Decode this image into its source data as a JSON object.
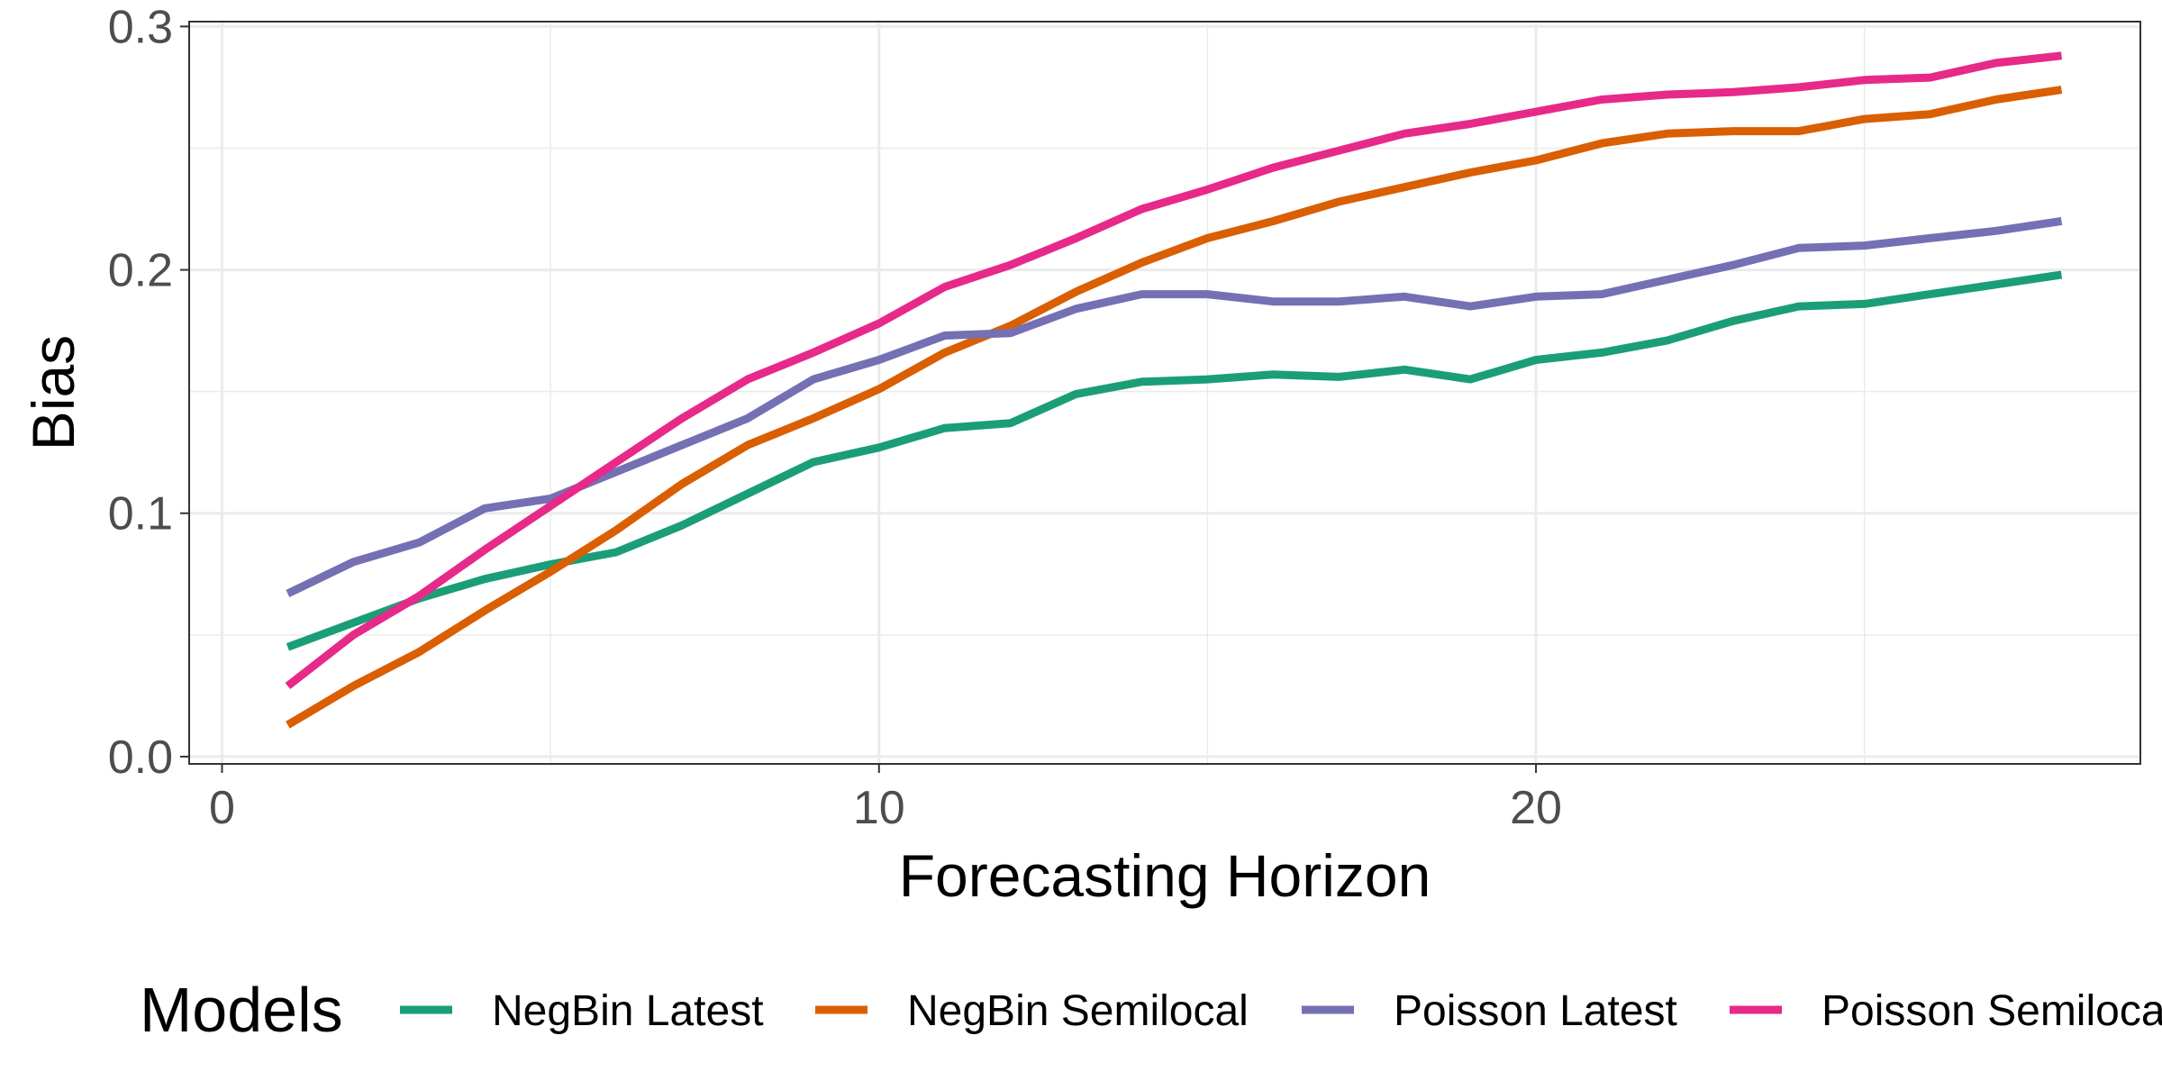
{
  "chart_data": {
    "type": "line",
    "title": "",
    "xlabel": "Forecasting Horizon",
    "ylabel": "Bias",
    "xlim": [
      -0.5,
      29.2
    ],
    "ylim": [
      -0.003,
      0.302
    ],
    "xticks": [
      0,
      10,
      20
    ],
    "xtick_labels": [
      "0",
      "10",
      "20"
    ],
    "yticks": [
      0.0,
      0.1,
      0.2,
      0.3
    ],
    "ytick_labels": [
      "0.0",
      "0.1",
      "0.2",
      "0.3"
    ],
    "grid": true,
    "legend": {
      "title": "Models",
      "position": "bottom"
    },
    "x": [
      1,
      2,
      3,
      4,
      5,
      6,
      7,
      8,
      9,
      10,
      11,
      12,
      13,
      14,
      15,
      16,
      17,
      18,
      19,
      20,
      21,
      22,
      23,
      24,
      25,
      26,
      27,
      28
    ],
    "series": [
      {
        "name": "NegBin Latest",
        "color": "#1b9e77",
        "values": [
          0.045,
          0.055,
          0.065,
          0.073,
          0.079,
          0.084,
          0.095,
          0.108,
          0.121,
          0.127,
          0.135,
          0.137,
          0.149,
          0.154,
          0.155,
          0.157,
          0.156,
          0.159,
          0.155,
          0.163,
          0.166,
          0.171,
          0.179,
          0.185,
          0.186,
          0.19,
          0.194,
          0.198
        ]
      },
      {
        "name": "NegBin Semilocal",
        "color": "#d95f02",
        "values": [
          0.013,
          0.029,
          0.043,
          0.06,
          0.076,
          0.093,
          0.112,
          0.128,
          0.139,
          0.151,
          0.166,
          0.177,
          0.191,
          0.203,
          0.213,
          0.22,
          0.228,
          0.234,
          0.24,
          0.245,
          0.252,
          0.256,
          0.257,
          0.257,
          0.262,
          0.264,
          0.27,
          0.274
        ]
      },
      {
        "name": "Poisson Latest",
        "color": "#7570b3",
        "values": [
          0.067,
          0.08,
          0.088,
          0.102,
          0.106,
          0.117,
          0.128,
          0.139,
          0.155,
          0.163,
          0.173,
          0.174,
          0.184,
          0.19,
          0.19,
          0.187,
          0.187,
          0.189,
          0.185,
          0.189,
          0.19,
          0.196,
          0.202,
          0.209,
          0.21,
          0.213,
          0.216,
          0.22
        ]
      },
      {
        "name": "Poisson Semilocal",
        "color": "#e7298a",
        "values": [
          0.029,
          0.05,
          0.066,
          0.085,
          0.103,
          0.121,
          0.139,
          0.155,
          0.166,
          0.178,
          0.193,
          0.202,
          0.213,
          0.225,
          0.233,
          0.242,
          0.249,
          0.256,
          0.26,
          0.265,
          0.27,
          0.272,
          0.273,
          0.275,
          0.278,
          0.279,
          0.285,
          0.288
        ]
      }
    ]
  }
}
